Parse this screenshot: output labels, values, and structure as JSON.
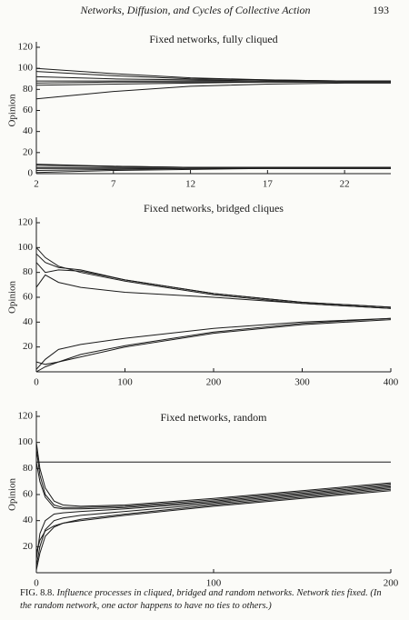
{
  "header": {
    "title": "Networks, Diffusion, and Cycles of Collective Action",
    "page_number": "193"
  },
  "chart_data": [
    {
      "type": "line",
      "title": "Fixed networks, fully cliqued",
      "ylabel": "Opinion",
      "color": "#1a1a1a",
      "x": [
        2,
        7,
        12,
        17,
        22,
        25
      ],
      "xlim": [
        2,
        25
      ],
      "xticks": [
        2,
        7,
        12,
        17,
        22
      ],
      "ylim": [
        0,
        120
      ],
      "yticks": [
        0,
        20,
        40,
        60,
        80,
        100,
        120
      ],
      "series": [
        {
          "values": [
            100,
            95,
            91,
            89,
            88,
            88
          ]
        },
        {
          "values": [
            97,
            93,
            90,
            89,
            88,
            88
          ]
        },
        {
          "values": [
            92,
            90,
            89,
            88,
            88,
            88
          ]
        },
        {
          "values": [
            88,
            88,
            88,
            88,
            88,
            88
          ]
        },
        {
          "values": [
            86,
            87,
            87,
            87,
            87,
            87
          ]
        },
        {
          "values": [
            84,
            85,
            86,
            87,
            87,
            87
          ]
        },
        {
          "values": [
            71,
            78,
            83,
            85,
            86,
            86
          ]
        },
        {
          "values": [
            9,
            7,
            6,
            6,
            6,
            6
          ]
        },
        {
          "values": [
            8,
            7,
            6,
            6,
            6,
            6
          ]
        },
        {
          "values": [
            6,
            6,
            6,
            6,
            6,
            6
          ]
        },
        {
          "values": [
            5,
            5,
            5,
            5,
            5,
            5
          ]
        },
        {
          "values": [
            3,
            4,
            5,
            5,
            5,
            5
          ]
        },
        {
          "values": [
            1,
            3,
            4,
            5,
            5,
            5
          ]
        }
      ]
    },
    {
      "type": "line",
      "title": "Fixed networks, bridged cliques",
      "ylabel": "Opinion",
      "color": "#1a1a1a",
      "x": [
        0,
        10,
        25,
        50,
        100,
        200,
        300,
        400
      ],
      "xlim": [
        0,
        400
      ],
      "xticks": [
        0,
        100,
        200,
        300,
        400
      ],
      "ylim": [
        0,
        120
      ],
      "yticks": [
        20,
        40,
        60,
        80,
        100,
        120
      ],
      "series": [
        {
          "values": [
            100,
            92,
            85,
            80,
            73,
            62,
            55,
            51
          ]
        },
        {
          "values": [
            95,
            88,
            84,
            82,
            74,
            63,
            56,
            52
          ]
        },
        {
          "values": [
            88,
            80,
            82,
            81,
            74,
            63,
            56,
            52
          ]
        },
        {
          "values": [
            68,
            78,
            72,
            68,
            64,
            60,
            55,
            51
          ]
        },
        {
          "values": [
            2,
            10,
            18,
            22,
            27,
            35,
            40,
            43
          ]
        },
        {
          "values": [
            8,
            6,
            8,
            12,
            20,
            31,
            38,
            42
          ]
        },
        {
          "values": [
            0,
            4,
            8,
            14,
            21,
            32,
            39,
            43
          ]
        }
      ]
    },
    {
      "type": "line",
      "title": "Fixed networks, random",
      "ylabel": "Opinion",
      "color": "#1a1a1a",
      "x": [
        0,
        2,
        5,
        10,
        15,
        25,
        50,
        100,
        150,
        200
      ],
      "xlim": [
        0,
        200
      ],
      "xticks": [
        0,
        100,
        200
      ],
      "ylim": [
        0,
        120
      ],
      "yticks": [
        20,
        40,
        60,
        80,
        100,
        120
      ],
      "series": [
        {
          "values": [
            85,
            85,
            85,
            85,
            85,
            85,
            85,
            85,
            85,
            85
          ]
        },
        {
          "values": [
            100,
            80,
            65,
            55,
            52,
            51,
            52,
            57,
            63,
            69
          ]
        },
        {
          "values": [
            95,
            75,
            60,
            52,
            50,
            50,
            51,
            56,
            62,
            68
          ]
        },
        {
          "values": [
            85,
            70,
            58,
            50,
            49,
            49,
            50,
            55,
            61,
            67
          ]
        },
        {
          "values": [
            10,
            30,
            40,
            45,
            46,
            47,
            49,
            54,
            60,
            66
          ]
        },
        {
          "values": [
            5,
            20,
            33,
            40,
            42,
            44,
            47,
            53,
            59,
            65
          ]
        },
        {
          "values": [
            2,
            15,
            28,
            35,
            38,
            41,
            45,
            52,
            58,
            64
          ]
        },
        {
          "values": [
            15,
            25,
            32,
            36,
            38,
            40,
            44,
            51,
            57,
            63
          ]
        }
      ]
    }
  ],
  "caption": {
    "label": "FIG. 8.8.",
    "text": "Influence processes in cliqued, bridged and random networks. Network ties fixed. (In the random network, one actor happens to have no ties to others.)"
  }
}
